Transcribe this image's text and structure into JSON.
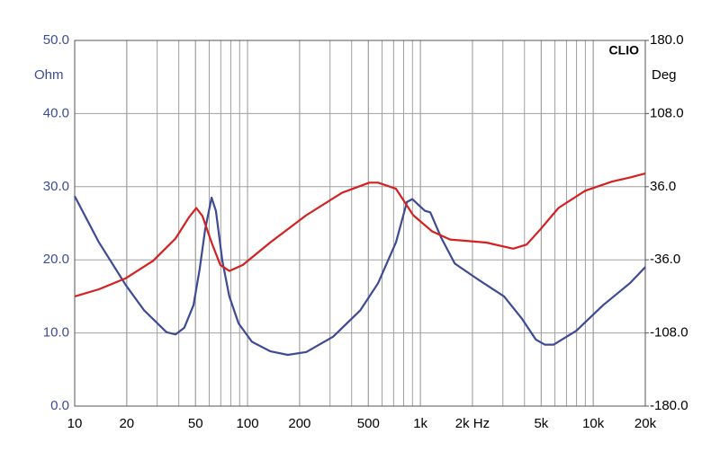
{
  "chart_data": {
    "type": "line",
    "annotation": "CLIO",
    "ylabel": "Ohm",
    "y2label": "Deg",
    "xscale": "log",
    "xlim": [
      10,
      20000
    ],
    "xticks": [
      10,
      20,
      50,
      100,
      200,
      500,
      {
        "value": 1000,
        "label": "1k"
      },
      {
        "value": 2000,
        "label": "2k Hz"
      },
      {
        "value": 5000,
        "label": "5k"
      },
      {
        "value": 10000,
        "label": "10k"
      },
      {
        "value": 20000,
        "label": "20k"
      }
    ],
    "ylim": [
      0,
      50
    ],
    "yticks": [
      {
        "value": 0,
        "label": "0.0"
      },
      {
        "value": 10,
        "label": "10.0"
      },
      {
        "value": 20,
        "label": "20.0"
      },
      {
        "value": 30,
        "label": "30.0"
      },
      {
        "value": 40,
        "label": "40.0"
      },
      {
        "value": 50,
        "label": "50.0"
      }
    ],
    "y2lim": [
      -180,
      180
    ],
    "y2ticks": [
      {
        "value": -180,
        "label": "-180.0"
      },
      {
        "value": -108,
        "label": "-108.0"
      },
      {
        "value": -36,
        "label": "-36.0"
      },
      {
        "value": 36,
        "label": "36.0"
      },
      {
        "value": 108,
        "label": "108.0"
      },
      {
        "value": 180,
        "label": "180.0"
      }
    ],
    "grid": true,
    "series": [
      {
        "color": "#3c4b94",
        "x": [
          10,
          13.8,
          19.8,
          25.2,
          34,
          38.3,
          43,
          48.7,
          52.8,
          56.9,
          61.9,
          65.6,
          71.4,
          78.4,
          88.7,
          106,
          135,
          171,
          219,
          313,
          449,
          569,
          722,
          835,
          897,
          975,
          1063,
          1141,
          1320,
          1580,
          2129,
          3050,
          3880,
          4650,
          5240,
          5900,
          7970,
          11400,
          16300,
          20000
        ],
        "values": [
          28.7,
          22.4,
          16.5,
          13.1,
          10.1,
          9.8,
          10.7,
          13.8,
          18.7,
          24.2,
          28.5,
          26.7,
          19.9,
          15.0,
          11.3,
          8.8,
          7.5,
          7.0,
          7.4,
          9.5,
          13.1,
          16.8,
          22.4,
          27.9,
          28.3,
          27.5,
          26.7,
          26.5,
          23.0,
          19.5,
          17.4,
          15.0,
          11.9,
          9.1,
          8.4,
          8.4,
          10.3,
          13.8,
          16.8,
          19.0
        ]
      },
      {
        "color": "#d42020",
        "axis": "y2",
        "x": [
          10,
          13.8,
          19.8,
          28.4,
          38.3,
          45.9,
          50.5,
          54.9,
          61.9,
          69.6,
          78.4,
          93.9,
          135,
          219,
          352,
          506,
          569,
          722,
          908,
          1168,
          1486,
          2407,
          3440,
          4120,
          4940,
          6290,
          8980,
          12860,
          16300,
          20000
        ],
        "values": [
          -72,
          -65,
          -54,
          -37,
          -15,
          6,
          15,
          7,
          -19,
          -41,
          -47,
          -41,
          -19,
          8,
          30,
          40,
          40,
          34,
          8,
          -8,
          -16,
          -19,
          -25,
          -21,
          -6,
          15,
          32,
          41,
          45,
          49
        ]
      }
    ]
  }
}
